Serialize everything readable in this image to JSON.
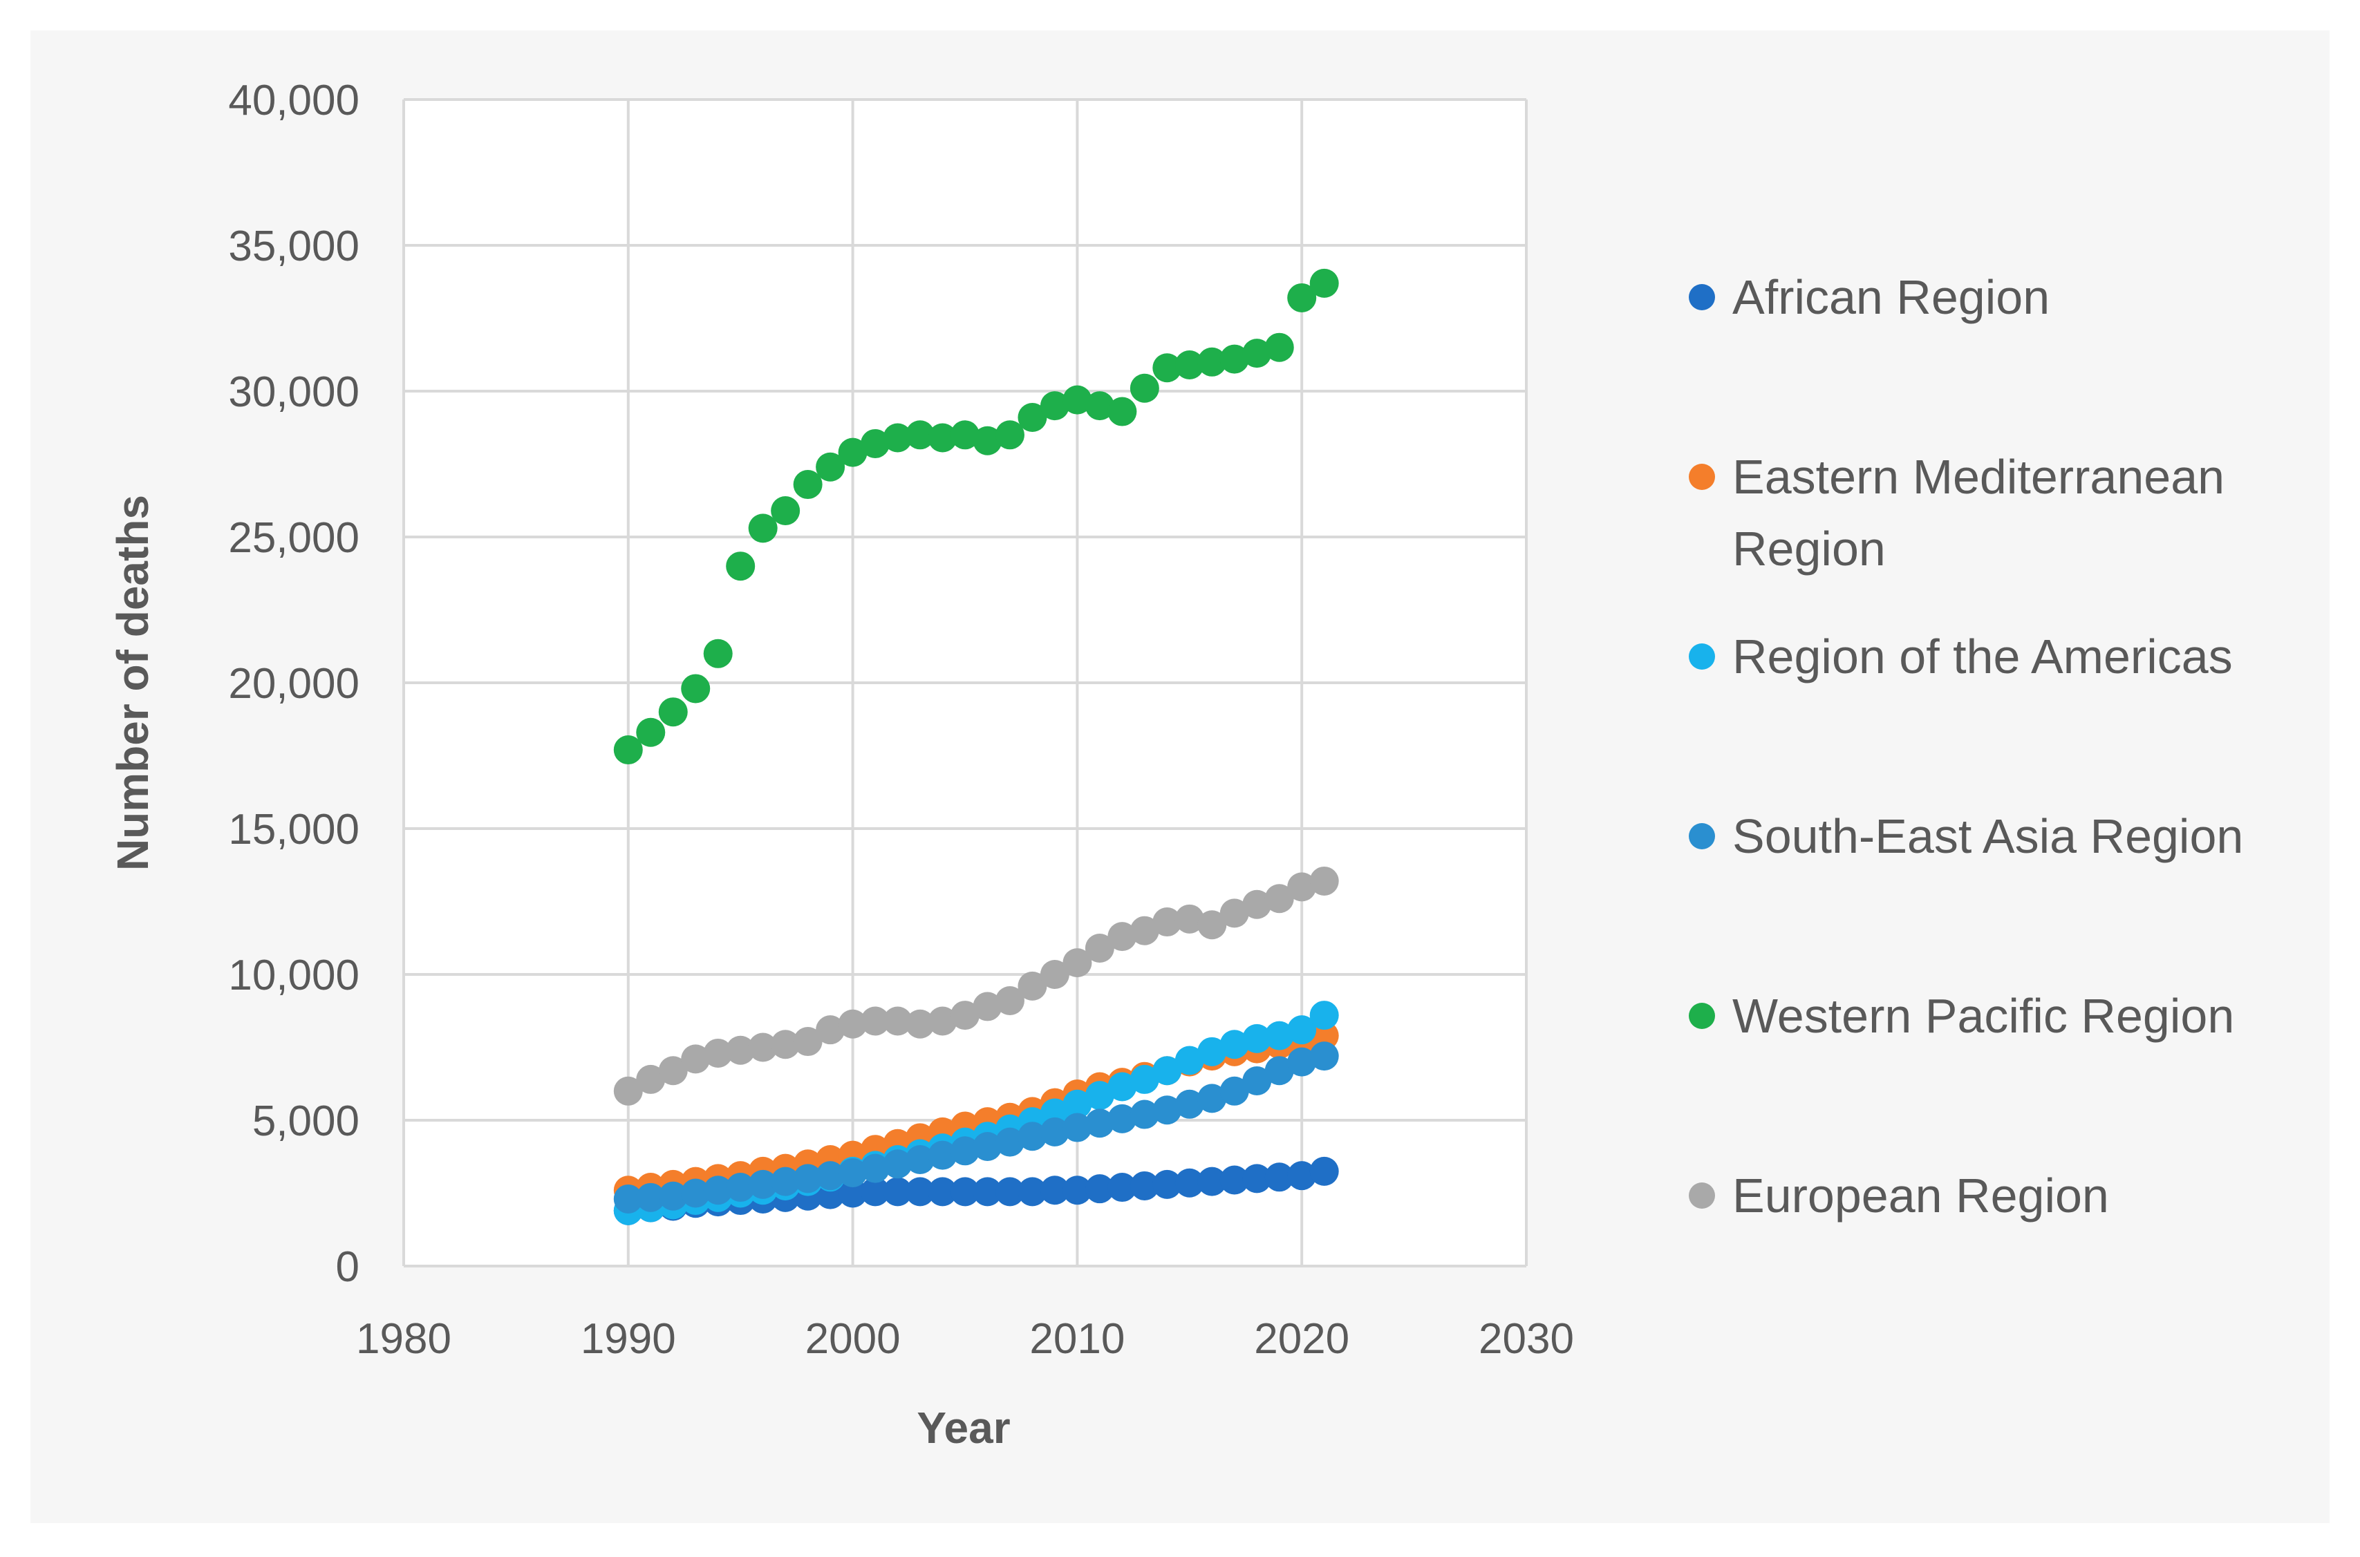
{
  "chart_data": {
    "type": "scatter",
    "title": "",
    "xlabel": "Year",
    "ylabel": "Number of deaths",
    "xlim": [
      1980,
      2030
    ],
    "ylim": [
      0,
      40000
    ],
    "x_ticks": [
      "1980",
      "1990",
      "2000",
      "2010",
      "2020",
      "2030"
    ],
    "y_ticks": [
      "0",
      "5,000",
      "10,000",
      "15,000",
      "20,000",
      "25,000",
      "30,000",
      "35,000",
      "40,000"
    ],
    "grid": true,
    "legend_position": "right",
    "x": [
      1990,
      1991,
      1992,
      1993,
      1994,
      1995,
      1996,
      1997,
      1998,
      1999,
      2000,
      2001,
      2002,
      2003,
      2004,
      2005,
      2006,
      2007,
      2008,
      2009,
      2010,
      2011,
      2012,
      2013,
      2014,
      2015,
      2016,
      2017,
      2018,
      2019,
      2020,
      2021
    ],
    "series": [
      {
        "name": "African Region",
        "color": "#1f6fc6",
        "legend_lines": [
          "African Region"
        ],
        "values": [
          1900,
          2000,
          2050,
          2150,
          2200,
          2250,
          2300,
          2350,
          2400,
          2450,
          2500,
          2550,
          2550,
          2550,
          2550,
          2550,
          2550,
          2550,
          2550,
          2600,
          2600,
          2650,
          2700,
          2750,
          2800,
          2850,
          2900,
          2950,
          3000,
          3050,
          3100,
          3250
        ]
      },
      {
        "name": "Eastern Mediterranean Region",
        "color": "#f47e2b",
        "legend_lines": [
          "Eastern Mediterranean",
          "Region"
        ],
        "values": [
          2600,
          2700,
          2800,
          2900,
          3000,
          3100,
          3250,
          3350,
          3500,
          3650,
          3800,
          4000,
          4200,
          4400,
          4600,
          4800,
          4950,
          5100,
          5300,
          5600,
          5900,
          6150,
          6300,
          6500,
          6700,
          7000,
          7200,
          7350,
          7450,
          7600,
          7700,
          7900
        ]
      },
      {
        "name": "Region of the Americas",
        "color": "#18b2ec",
        "legend_lines": [
          "Region of the Americas"
        ],
        "values": [
          1900,
          2000,
          2100,
          2250,
          2350,
          2500,
          2600,
          2750,
          2900,
          3050,
          3250,
          3450,
          3650,
          3850,
          4050,
          4250,
          4450,
          4700,
          4950,
          5250,
          5550,
          5850,
          6150,
          6400,
          6700,
          7050,
          7350,
          7600,
          7800,
          7900,
          8100,
          8600
        ]
      },
      {
        "name": "South-East Asia Region",
        "color": "#2a8fd0",
        "legend_lines": [
          "South-East Asia Region"
        ],
        "values": [
          2300,
          2350,
          2400,
          2500,
          2600,
          2700,
          2800,
          2900,
          3000,
          3100,
          3200,
          3350,
          3500,
          3650,
          3800,
          3950,
          4100,
          4250,
          4450,
          4600,
          4750,
          4900,
          5050,
          5200,
          5350,
          5550,
          5750,
          6000,
          6350,
          6700,
          7000,
          7200
        ]
      },
      {
        "name": "Western Pacific Region",
        "color": "#1eaf4b",
        "legend_lines": [
          "Western Pacific Region"
        ],
        "values": [
          17700,
          18300,
          19000,
          19800,
          21000,
          24000,
          25300,
          25900,
          26800,
          27400,
          27900,
          28200,
          28400,
          28500,
          28400,
          28500,
          28300,
          28500,
          29100,
          29500,
          29700,
          29500,
          29300,
          30100,
          30800,
          30900,
          31000,
          31100,
          31300,
          31500,
          33200,
          33700
        ]
      },
      {
        "name": "European Region",
        "color": "#a9a9a9",
        "legend_lines": [
          "European Region"
        ],
        "values": [
          6000,
          6400,
          6700,
          7100,
          7300,
          7400,
          7500,
          7600,
          7700,
          8100,
          8300,
          8400,
          8400,
          8300,
          8400,
          8600,
          8900,
          9100,
          9600,
          10000,
          10400,
          10900,
          11300,
          11500,
          11800,
          11900,
          11700,
          12100,
          12400,
          12600,
          13000,
          13200
        ]
      }
    ]
  }
}
